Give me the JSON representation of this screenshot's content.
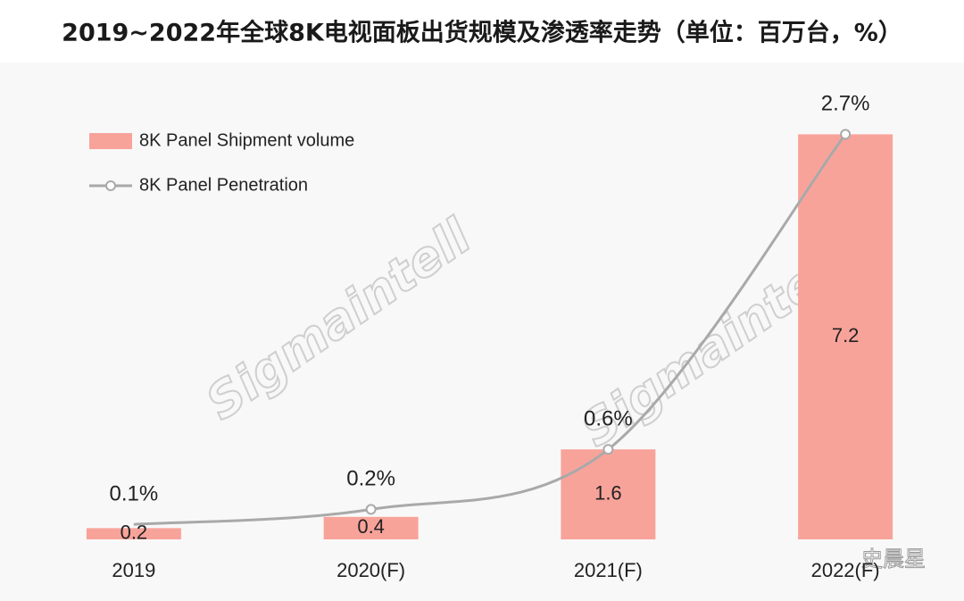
{
  "chart_data": {
    "type": "bar-line",
    "title": "2019~2022年全球8K电视面板出货规模及渗透率走势（单位：百万台，%）",
    "categories": [
      "2019",
      "2020(F)",
      "2021(F)",
      "2022(F)"
    ],
    "series": [
      {
        "name": "8K Panel Shipment volume",
        "type": "bar",
        "color": "#f8a39a",
        "values": [
          0.2,
          0.4,
          1.6,
          7.2
        ]
      },
      {
        "name": "8K Panel Penetration",
        "type": "line",
        "axis": "y2",
        "color": "#a9a9a9",
        "values": [
          0.1,
          0.2,
          0.6,
          2.7
        ],
        "value_labels": [
          "0.1%",
          "0.2%",
          "0.6%",
          "2.7%"
        ]
      }
    ],
    "ylim": [
      0,
      8
    ],
    "y2lim": [
      0,
      3
    ],
    "legend": "top-left",
    "watermark": "Sigmaintell",
    "source": "史晨星"
  }
}
